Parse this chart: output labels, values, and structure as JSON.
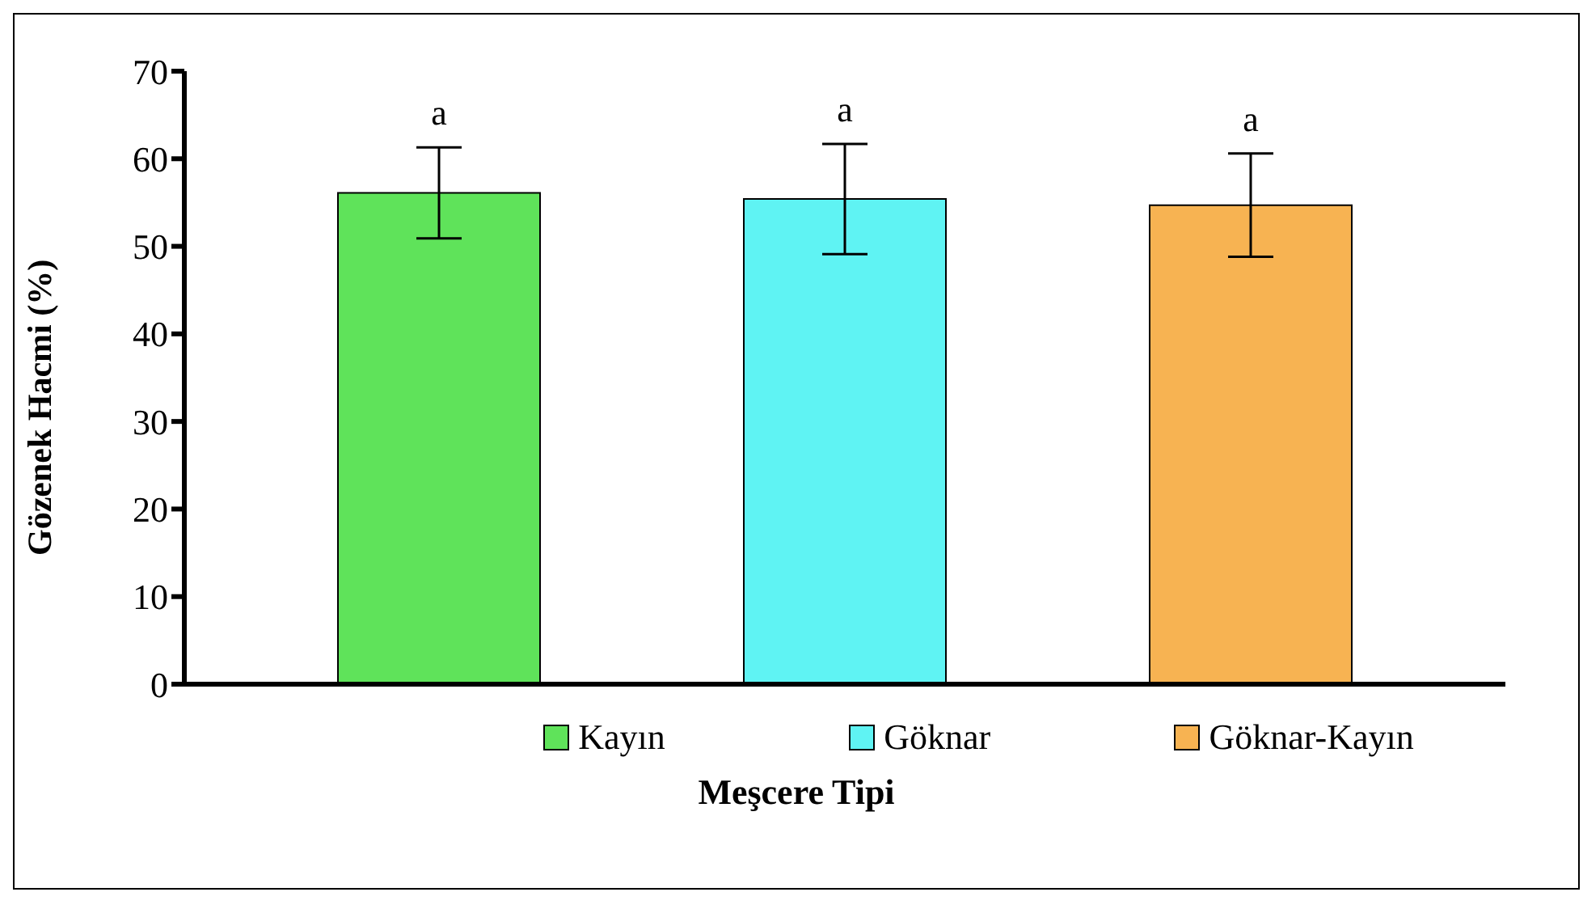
{
  "chart_data": {
    "type": "bar",
    "xlabel": "Meşcere Tipi",
    "ylabel": "Gözenek Hacmi (%)",
    "categories": [
      null
    ],
    "series": [
      {
        "name": "Kayın",
        "color": "#5fe35a",
        "values": [
          56.1
        ],
        "errors": [
          5.2
        ]
      },
      {
        "name": "Göknar",
        "color": "#5ff3f3",
        "values": [
          55.4
        ],
        "errors": [
          6.3
        ]
      },
      {
        "name": "Göknar-Kayın",
        "color": "#f7b352",
        "values": [
          54.7
        ],
        "errors": [
          5.9
        ]
      }
    ],
    "annotations": [
      "a",
      "a",
      "a"
    ],
    "ylim": [
      0,
      70
    ],
    "yticks": [
      0,
      10,
      20,
      30,
      40,
      50,
      60,
      70
    ],
    "legend": "bottom",
    "tick_labels": "y"
  }
}
